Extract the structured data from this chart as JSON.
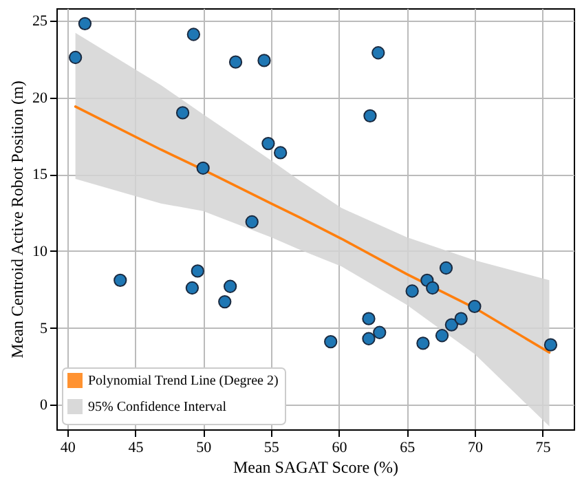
{
  "chart_data": {
    "type": "scatter",
    "xlabel": "Mean SAGAT Score (%)",
    "ylabel": "Mean Centroid Active Robot Position (m)",
    "xlim": [
      39.2,
      77.3
    ],
    "ylim": [
      -1.6,
      25.8
    ],
    "xticks": [
      40,
      45,
      50,
      55,
      60,
      65,
      70,
      75
    ],
    "yticks": [
      0,
      5,
      10,
      15,
      20,
      25
    ],
    "grid": true,
    "legend": "bottom left",
    "marker": "circle",
    "annotations": [
      "95% Confidence Interval"
    ],
    "series": [
      {
        "type": "line",
        "marker": "none",
        "name": "Polynomial Trend Line (Degree 2)",
        "color": "#ff7f0e",
        "x": [
          40.6,
          46.9,
          50,
          55,
          57.1,
          60.2,
          65,
          70,
          75.5
        ],
        "values": [
          19.4,
          16.6,
          15.3,
          13.1,
          12.2,
          10.8,
          8.5,
          6.3,
          3.4
        ],
        "upper": [
          24.2,
          20.8,
          18.9,
          15.9,
          14.6,
          12.8,
          10.9,
          9.4,
          8.1
        ],
        "lower": [
          14.7,
          13.1,
          12.6,
          10.9,
          10.1,
          9.0,
          6.5,
          3.3,
          -1.4
        ]
      },
      {
        "color": "#1f77b4",
        "x": [
          40.6,
          41.3,
          49.3,
          52.4,
          54.5,
          62.9,
          62.3,
          48.5,
          54.8,
          55.7,
          50.0,
          53.6,
          43.9,
          49.6,
          49.2,
          52.0,
          51.6,
          59.4,
          62.2,
          62.2,
          63.0,
          65.4,
          66.5,
          66.9,
          67.9,
          66.2,
          67.6,
          68.3,
          69.0,
          70.0,
          75.6
        ],
        "values": [
          22.6,
          24.8,
          24.1,
          22.3,
          22.4,
          22.9,
          18.8,
          19.0,
          17.0,
          16.4,
          15.4,
          11.9,
          8.1,
          8.7,
          7.6,
          7.7,
          6.7,
          4.1,
          5.6,
          4.3,
          4.7,
          7.4,
          8.1,
          7.6,
          8.9,
          4.0,
          4.5,
          5.2,
          5.6,
          6.4,
          3.9
        ]
      }
    ]
  }
}
